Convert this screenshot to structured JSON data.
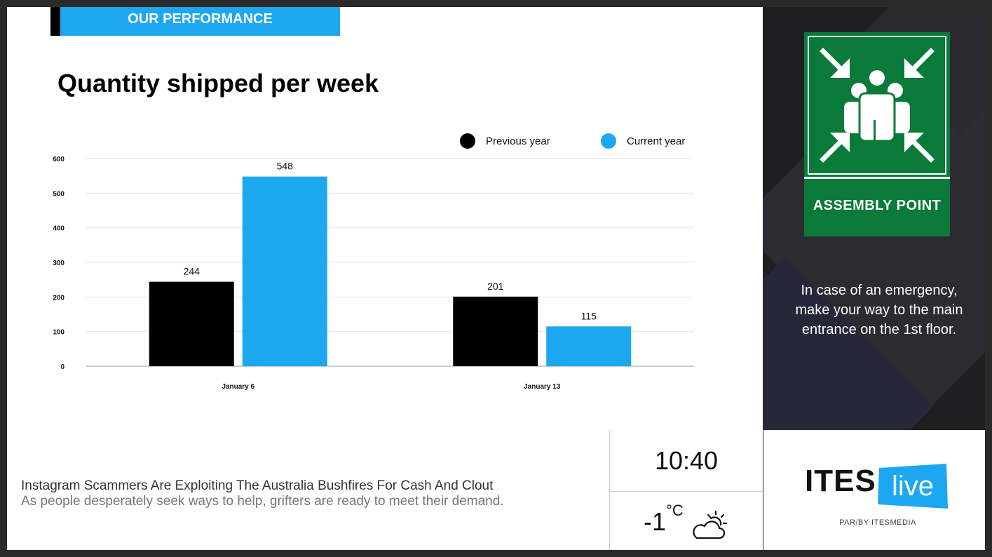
{
  "header": {
    "section_label": "OUR PERFORMANCE"
  },
  "chart_data": {
    "type": "bar",
    "title": "Quantity shipped per week",
    "categories": [
      "January 6",
      "January 13"
    ],
    "series": [
      {
        "name": "Previous year",
        "values": [
          244,
          201
        ],
        "color": "#000000"
      },
      {
        "name": "Current year",
        "values": [
          548,
          115
        ],
        "color": "#1da7f1"
      }
    ],
    "ylim": [
      0,
      600
    ],
    "yticks": [
      "0",
      "100",
      "200",
      "300",
      "400",
      "500",
      "600"
    ],
    "grid": true,
    "legend": "top-right",
    "data_labels": true
  },
  "ticker": {
    "headline": "Instagram Scammers Are Exploiting The Australia Bushfires For Cash And Clout",
    "subline": "As people desperately seek ways to help, grifters are ready to meet their demand."
  },
  "clock": {
    "time": "10:40"
  },
  "weather": {
    "temp": "-1",
    "unit": "°C",
    "icon": "partly-cloudy-icon"
  },
  "sidebar": {
    "sign_label": "ASSEMBLY POINT",
    "sign_icon": "assembly-point-icon",
    "sign_color": "#0a7a3a",
    "notice_lines": [
      "In case of an emergency,",
      "make your way to the main",
      "entrance on the 1st floor."
    ]
  },
  "branding": {
    "logo_text": "ITES",
    "logo_badge": "live",
    "tagline": "PAR/BY ITESMEDIA",
    "accent": "#1da7f1"
  }
}
